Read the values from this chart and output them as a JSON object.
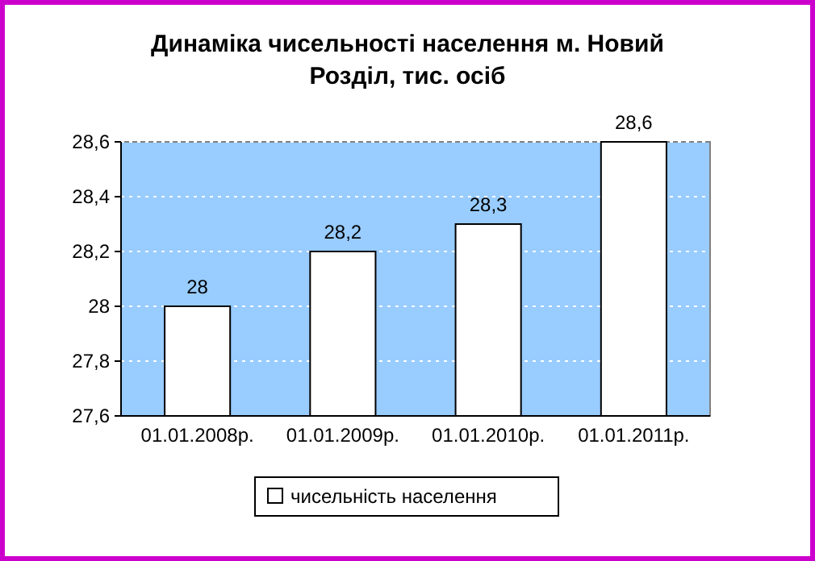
{
  "chart_data": {
    "type": "bar",
    "title": "Динаміка чисельності населення м. Новий Розділ, тис. осіб",
    "categories": [
      "01.01.2008р.",
      "01.01.2009р.",
      "01.01.2010р.",
      "01.01.2011р."
    ],
    "series": [
      {
        "name": "чисельність населення",
        "color": "#ffffff",
        "values": [
          28,
          28.2,
          28.3,
          28.6
        ]
      }
    ],
    "ylim": [
      27.6,
      28.6
    ],
    "yticks": [
      {
        "value": 27.6,
        "label": "27,6"
      },
      {
        "value": 27.8,
        "label": "27,8"
      },
      28,
      {
        "value": 28.2,
        "label": "28,2"
      },
      {
        "value": 28.4,
        "label": "28,4"
      },
      {
        "value": 28.6,
        "label": "28,6"
      }
    ],
    "value_labels": [
      "28",
      "28,2",
      "28,3",
      "28,6"
    ],
    "grid": "y",
    "legend": "bottom"
  }
}
